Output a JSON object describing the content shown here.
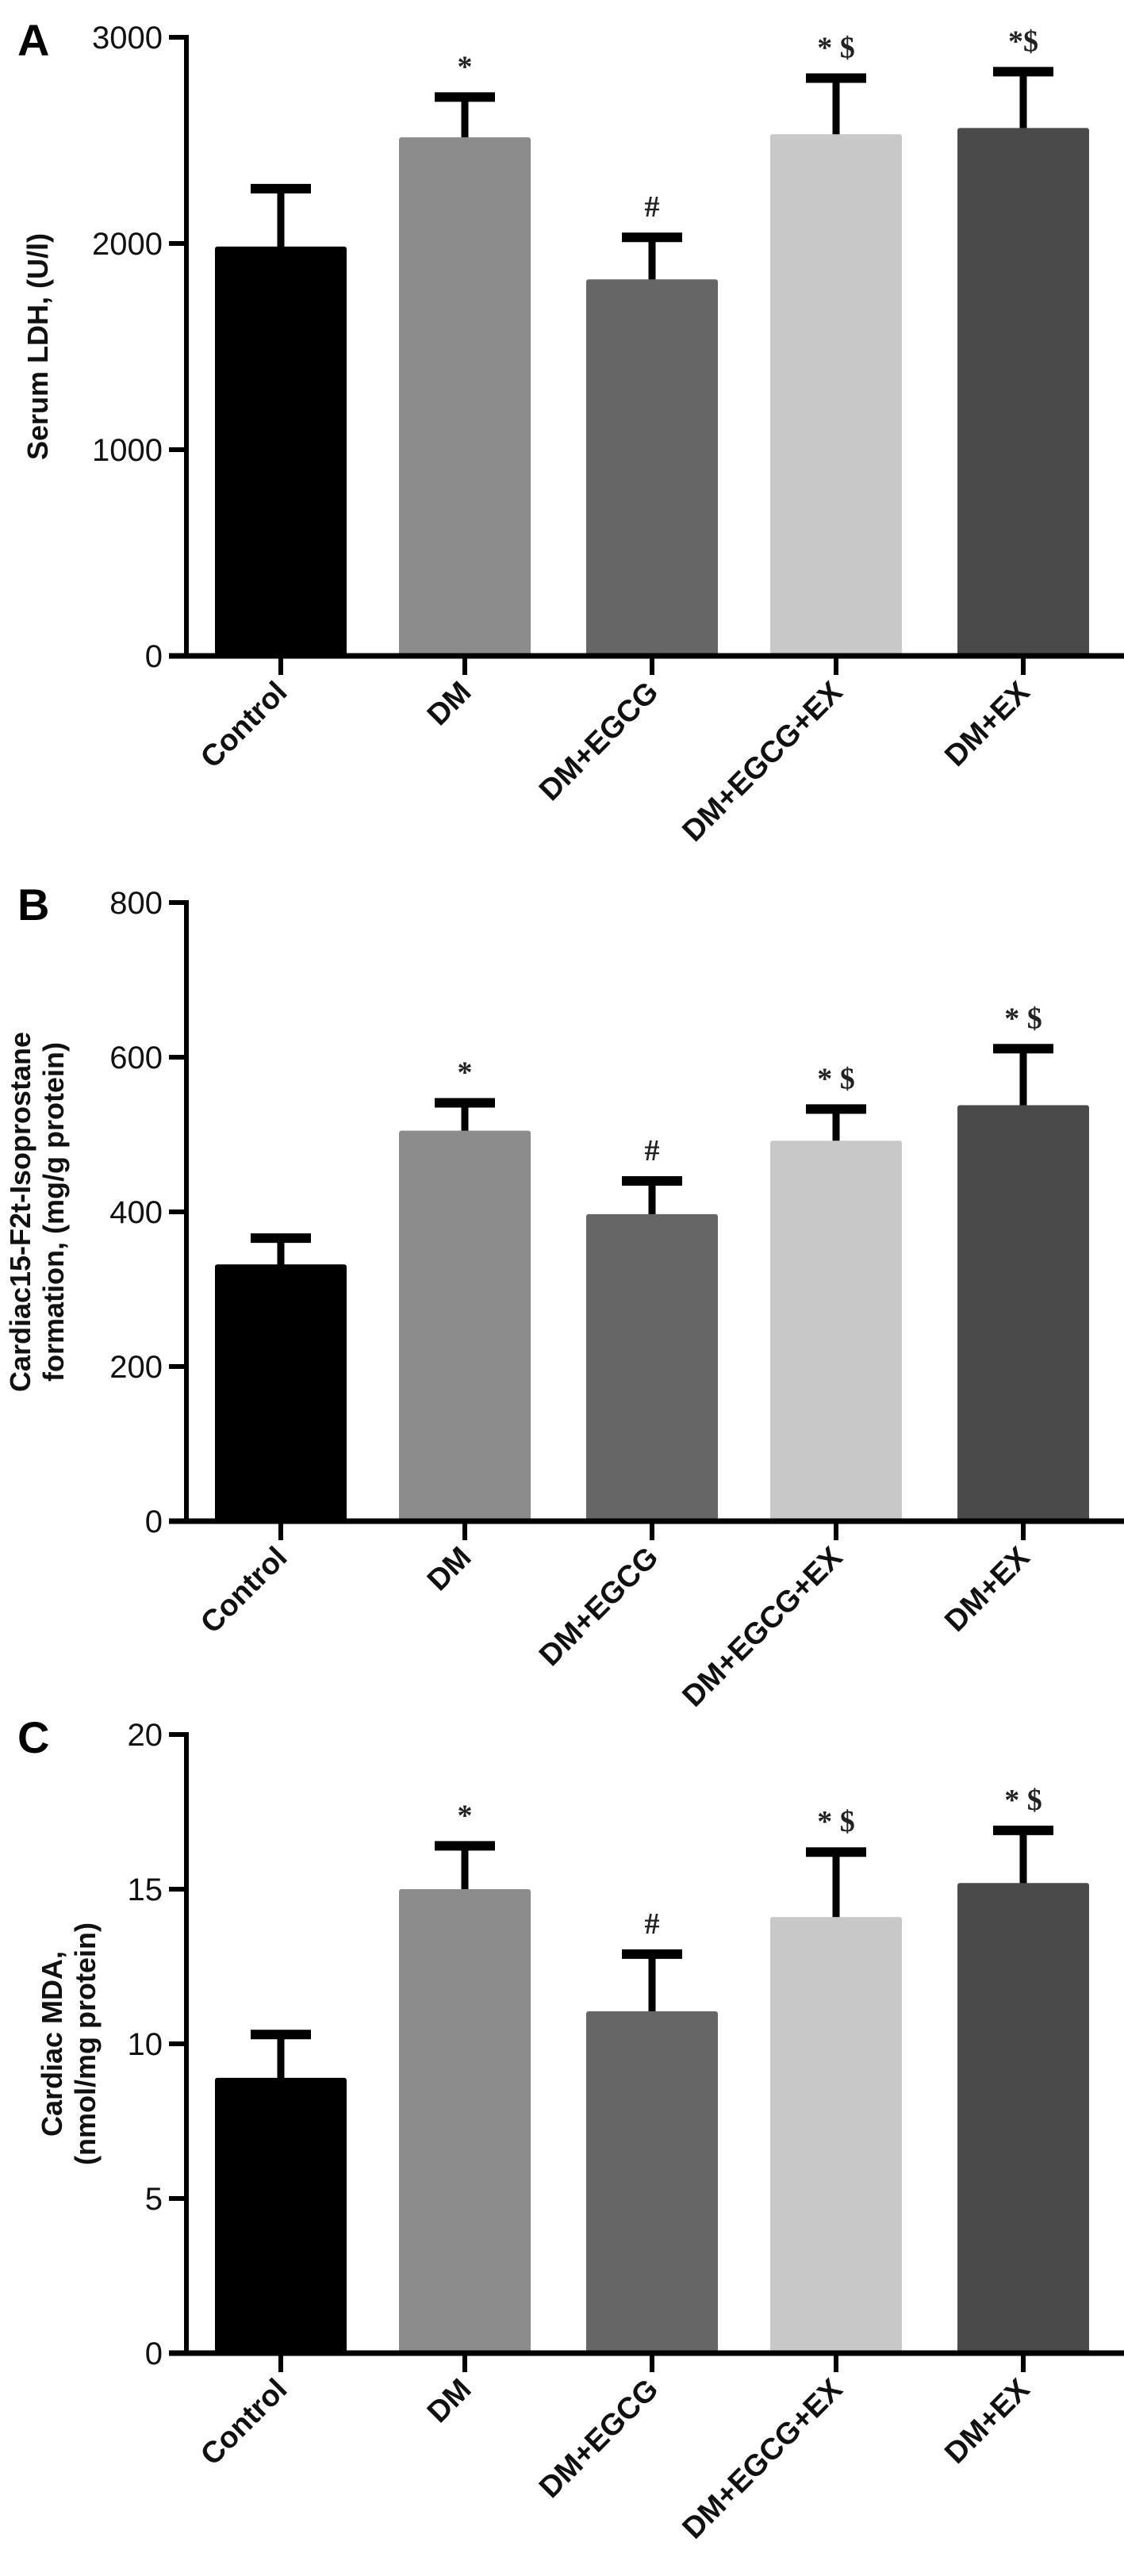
{
  "chart_data": [
    {
      "panel": "A",
      "type": "bar",
      "categories": [
        "Control",
        "DM",
        "DM+EGCG",
        "DM+EGCG+EX",
        "DM+EX"
      ],
      "values": [
        1985,
        2515,
        1826,
        2530,
        2560
      ],
      "error_upper": [
        2266,
        2710,
        2030,
        2802,
        2833
      ],
      "annotations": [
        "",
        "*",
        "#",
        "* $",
        "*$"
      ],
      "ylabel": [
        "Serum LDH, (U/l)"
      ],
      "ylim": [
        0,
        3000
      ],
      "yticks": [
        0,
        1000,
        2000,
        3000
      ],
      "colors": [
        "#000000",
        "#8c8c8c",
        "#666666",
        "#c8c8c8",
        "#4a4a4a"
      ],
      "grid": false
    },
    {
      "panel": "B",
      "type": "bar",
      "categories": [
        "Control",
        "DM",
        "DM+EGCG",
        "DM+EGCG+EX",
        "DM+EX"
      ],
      "values": [
        332,
        505,
        397,
        492,
        538
      ],
      "error_upper": [
        366,
        541,
        440,
        533,
        611
      ],
      "annotations": [
        "",
        "*",
        "#",
        "* $",
        "* $"
      ],
      "ylabel": [
        "Cardiac15-F2t-Isoprostane",
        "formation, (mg/g protein)"
      ],
      "ylim": [
        0,
        800
      ],
      "yticks": [
        0,
        200,
        400,
        600,
        800
      ],
      "colors": [
        "#000000",
        "#8c8c8c",
        "#666666",
        "#c8c8c8",
        "#4a4a4a"
      ],
      "grid": false
    },
    {
      "panel": "C",
      "type": "bar",
      "categories": [
        "Control",
        "DM",
        "DM+EGCG",
        "DM+EGCG+EX",
        "DM+EX"
      ],
      "values": [
        8.9,
        15.0,
        11.05,
        14.1,
        15.2
      ],
      "error_upper": [
        10.3,
        16.4,
        12.9,
        16.2,
        16.9
      ],
      "annotations": [
        "",
        "*",
        "#",
        "* $",
        "* $"
      ],
      "ylabel": [
        "Cardiac MDA,",
        "(nmol/mg protein)"
      ],
      "ylim": [
        0,
        20
      ],
      "yticks": [
        0,
        5,
        10,
        15,
        20
      ],
      "colors": [
        "#000000",
        "#8c8c8c",
        "#666666",
        "#c8c8c8",
        "#4a4a4a"
      ],
      "grid": false
    }
  ]
}
